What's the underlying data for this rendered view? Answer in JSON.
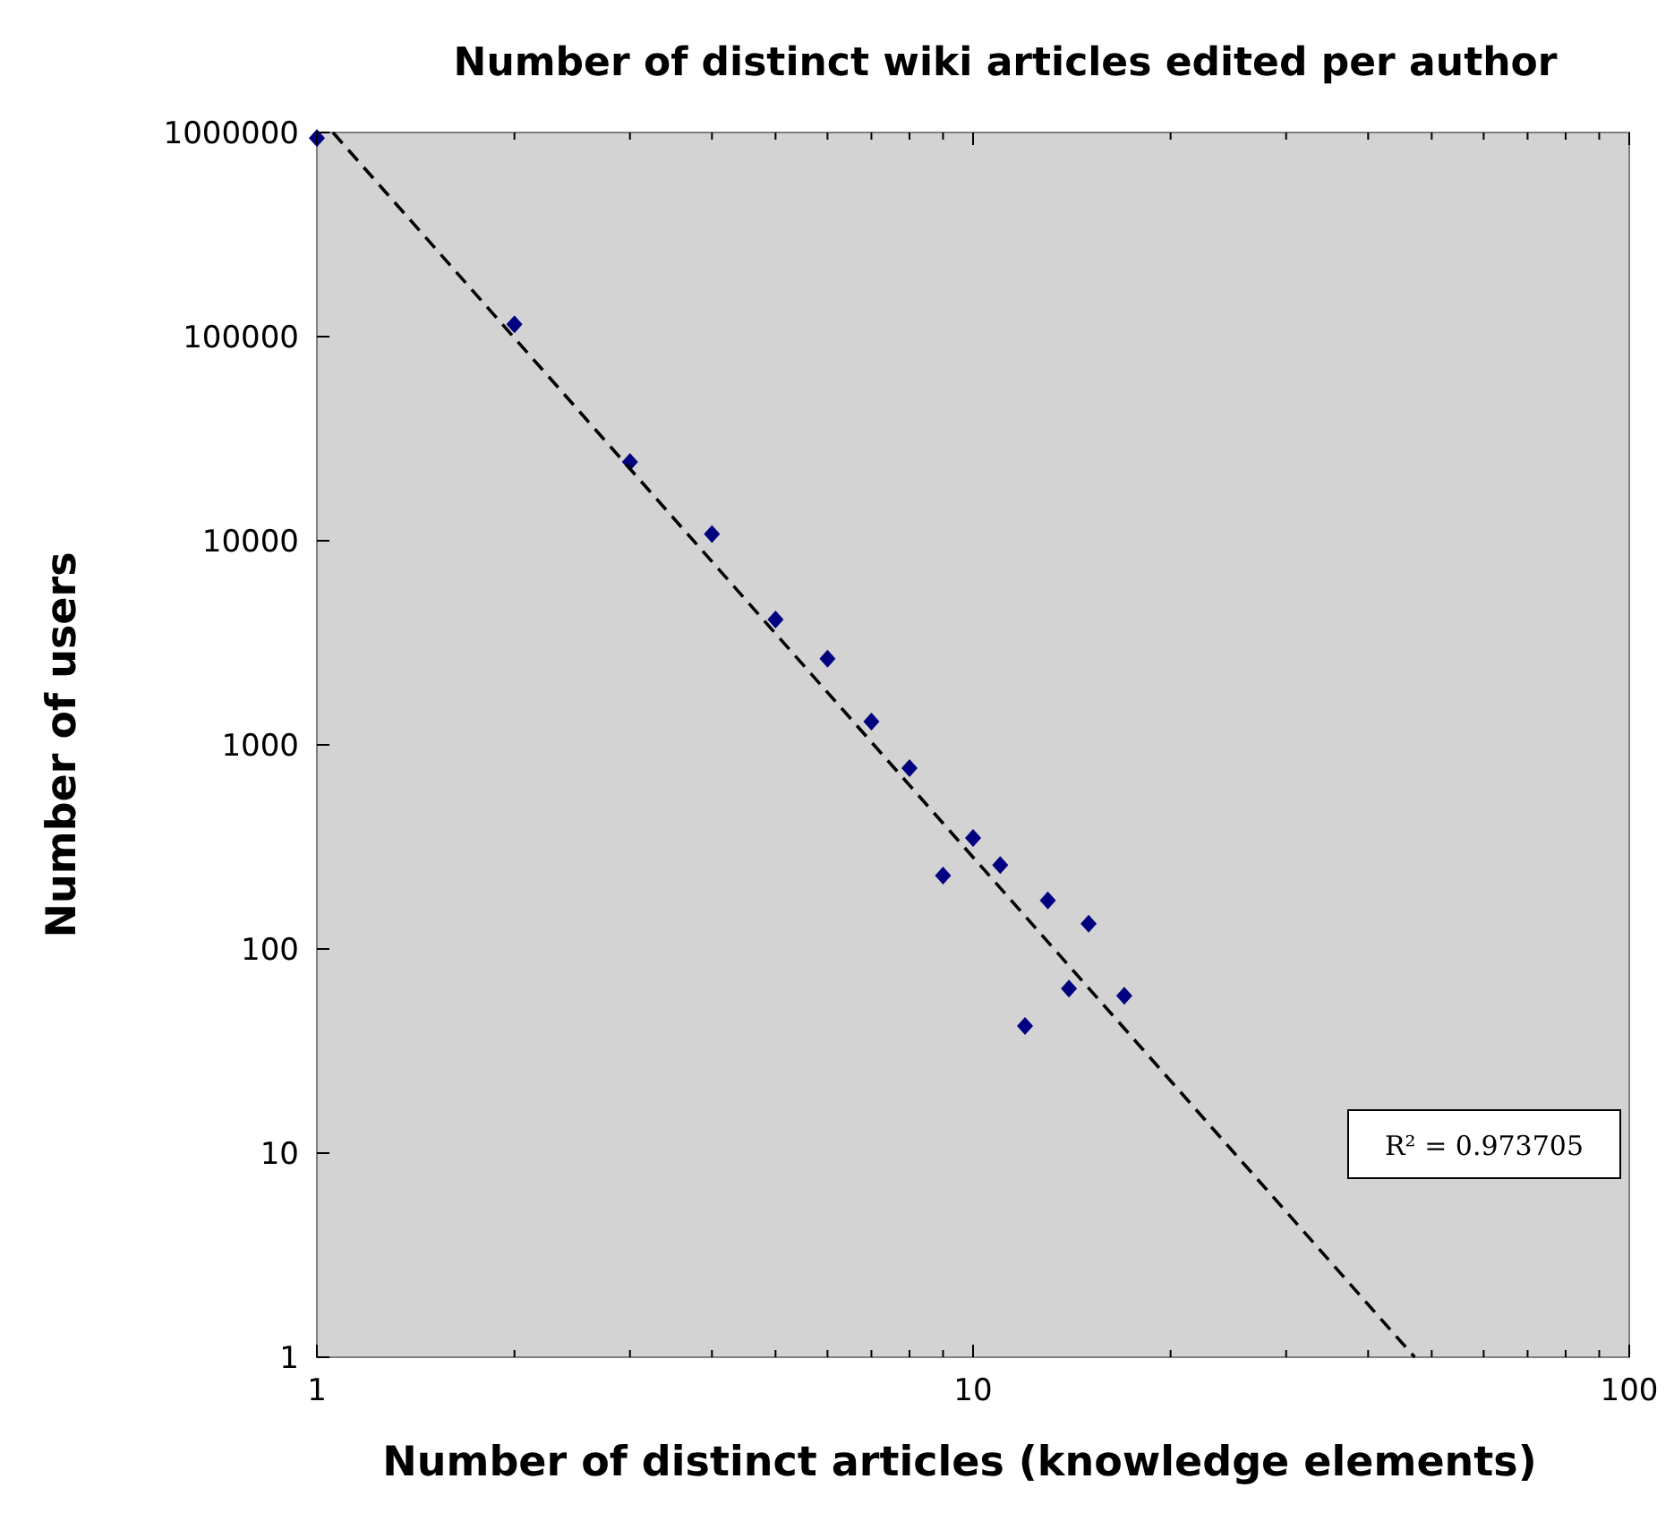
{
  "chart_data": {
    "type": "scatter",
    "title": "Number of distinct wiki articles edited per author",
    "xlabel": "Number of distinct articles (knowledge elements)",
    "ylabel": "Number of users",
    "log": "xy",
    "grid": false,
    "marker": "diamond",
    "xlim": [
      1,
      100
    ],
    "xticks": [
      1,
      {
        "value": 2,
        "label": null
      },
      {
        "value": 3,
        "label": null
      },
      {
        "value": 4,
        "label": null
      },
      {
        "value": 5,
        "label": null
      },
      {
        "value": 6,
        "label": null
      },
      {
        "value": 7,
        "label": null
      },
      {
        "value": 8,
        "label": null
      },
      {
        "value": 9,
        "label": null
      },
      10,
      {
        "value": 20,
        "label": null
      },
      {
        "value": 30,
        "label": null
      },
      {
        "value": 40,
        "label": null
      },
      {
        "value": 50,
        "label": null
      },
      {
        "value": 60,
        "label": null
      },
      {
        "value": 70,
        "label": null
      },
      {
        "value": 80,
        "label": null
      },
      {
        "value": 90,
        "label": null
      },
      100
    ],
    "ylim": [
      1,
      1000000
    ],
    "yticks": [
      1,
      10,
      100,
      1000,
      10000,
      100000,
      1000000
    ],
    "series": [
      {
        "color": "#000080",
        "x": [
          1,
          2,
          3,
          4,
          5,
          6,
          7,
          8,
          9,
          10,
          11,
          12,
          13,
          14,
          15,
          17
        ],
        "values": [
          940000,
          115000,
          24300,
          10800,
          4110,
          2640,
          1300,
          769,
          229,
          350,
          258,
          42,
          173,
          64,
          133,
          59
        ]
      },
      {
        "type": "line",
        "color": "#000000",
        "line_style": "dashed",
        "marker": "none",
        "x": [
          1.058,
          47.1
        ],
        "values": [
          1000000,
          1
        ]
      }
    ],
    "annotations": [
      "R² = 0.973705"
    ]
  }
}
